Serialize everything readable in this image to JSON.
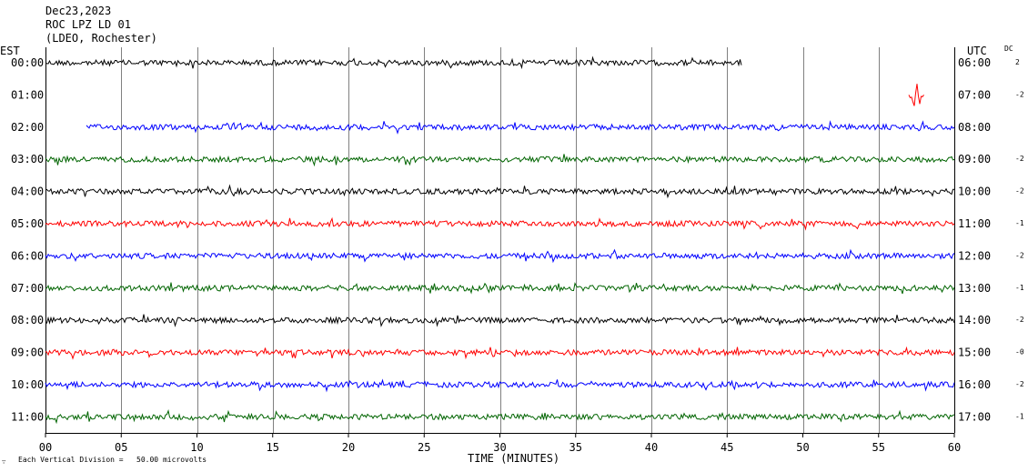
{
  "header": {
    "date": "Dec23,2023",
    "station": "ROC LPZ LD 01",
    "network": "(LDEO, Rochester)"
  },
  "labels": {
    "left_tz": "EST",
    "right_tz": "UTC",
    "dc": "DC",
    "xlabel": "TIME (MINUTES)",
    "footnote_mark": "∵",
    "footnote": "Each Vertical Division =   50.00 microvolts"
  },
  "colors": {
    "black": "#000000",
    "red": "#ff0000",
    "blue": "#0000ff",
    "green": "#006400",
    "grid": "#808080"
  },
  "chart_data": {
    "type": "line",
    "title": "ROC LPZ LD 01",
    "xlabel": "TIME (MINUTES)",
    "ylabel": "",
    "xlim": [
      0,
      60
    ],
    "x_ticks": [
      "00",
      "05",
      "10",
      "15",
      "20",
      "25",
      "30",
      "35",
      "40",
      "45",
      "50",
      "55",
      "60"
    ],
    "rows": [
      {
        "est": "00:00",
        "utc": "06:00",
        "dc": "2",
        "color": "black",
        "start_min": 0,
        "end_min": 46,
        "amp": 1.0
      },
      {
        "est": "01:00",
        "utc": "07:00",
        "dc": "-2",
        "color": "red",
        "start_min": 57,
        "end_min": 58,
        "amp": 1.6
      },
      {
        "est": "02:00",
        "utc": "08:00",
        "dc": "",
        "color": "blue",
        "start_min": 2.7,
        "end_min": 60,
        "amp": 1.0
      },
      {
        "est": "03:00",
        "utc": "09:00",
        "dc": "-2",
        "color": "green",
        "start_min": 0,
        "end_min": 60,
        "amp": 1.0
      },
      {
        "est": "04:00",
        "utc": "10:00",
        "dc": "-2",
        "color": "black",
        "start_min": 0,
        "end_min": 60,
        "amp": 1.0
      },
      {
        "est": "05:00",
        "utc": "11:00",
        "dc": "-1",
        "color": "red",
        "start_min": 0,
        "end_min": 60,
        "amp": 1.0
      },
      {
        "est": "06:00",
        "utc": "12:00",
        "dc": "-2",
        "color": "blue",
        "start_min": 0,
        "end_min": 60,
        "amp": 1.0
      },
      {
        "est": "07:00",
        "utc": "13:00",
        "dc": "-1",
        "color": "green",
        "start_min": 0,
        "end_min": 60,
        "amp": 1.0
      },
      {
        "est": "08:00",
        "utc": "14:00",
        "dc": "-2",
        "color": "black",
        "start_min": 0,
        "end_min": 60,
        "amp": 1.0
      },
      {
        "est": "09:00",
        "utc": "15:00",
        "dc": "-0",
        "color": "red",
        "start_min": 0,
        "end_min": 60,
        "amp": 1.0
      },
      {
        "est": "10:00",
        "utc": "16:00",
        "dc": "-2",
        "color": "blue",
        "start_min": 0,
        "end_min": 60,
        "amp": 1.0
      },
      {
        "est": "11:00",
        "utc": "17:00",
        "dc": "-1",
        "color": "green",
        "start_min": 0,
        "end_min": 60,
        "amp": 1.0
      }
    ]
  }
}
